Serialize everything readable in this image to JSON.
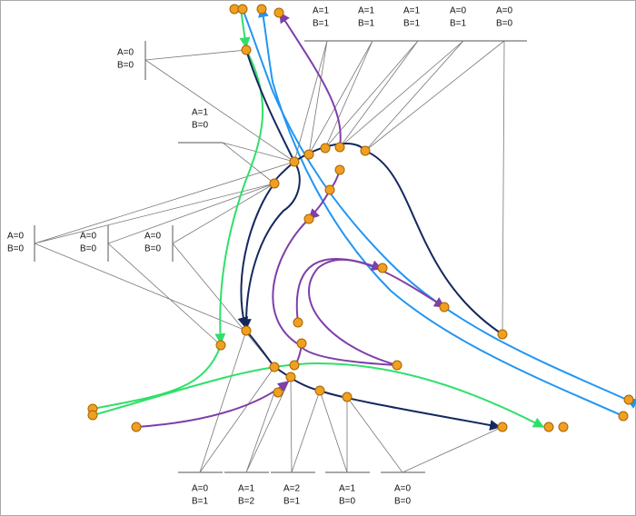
{
  "labels": {
    "top": [
      {
        "a": "A=1",
        "b": "B=1"
      },
      {
        "a": "A=1",
        "b": "B=1"
      },
      {
        "a": "A=1",
        "b": "B=1"
      },
      {
        "a": "A=0",
        "b": "B=1"
      },
      {
        "a": "A=0",
        "b": "B=0"
      }
    ],
    "left": [
      {
        "a": "A=0",
        "b": "B=0"
      },
      {
        "a": "A=1",
        "b": "B=0"
      },
      {
        "a": "A=0",
        "b": "B=0"
      },
      {
        "a": "A=0",
        "b": "B=0"
      },
      {
        "a": "A=0",
        "b": "B=0"
      }
    ],
    "bottom": [
      {
        "a": "A=0",
        "b": "B=1"
      },
      {
        "a": "A=1",
        "b": "B=2"
      },
      {
        "a": "A=2",
        "b": "B=1"
      },
      {
        "a": "A=1",
        "b": "B=0"
      },
      {
        "a": "A=0",
        "b": "B=0"
      }
    ]
  }
}
